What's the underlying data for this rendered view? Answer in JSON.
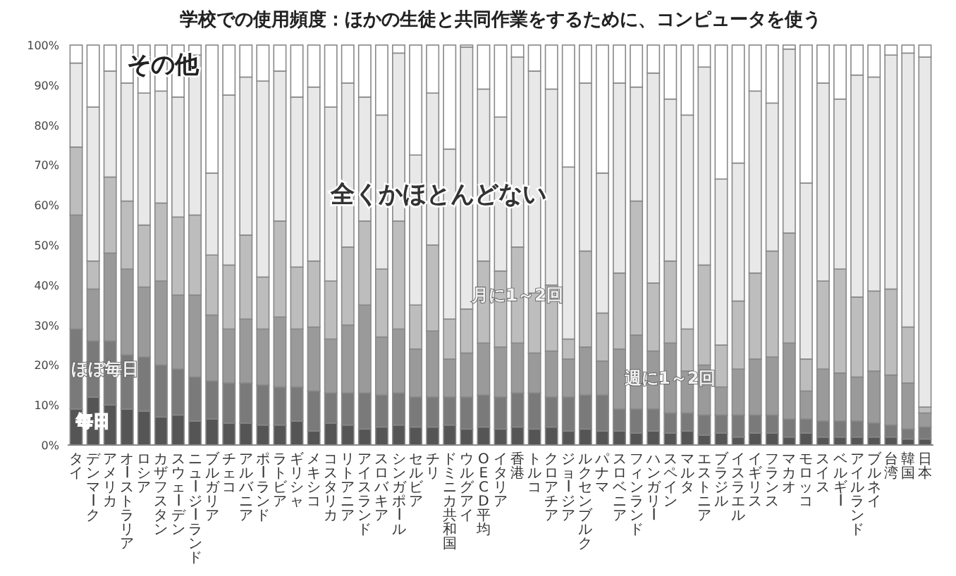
{
  "chart_data": {
    "type": "bar",
    "stacked": true,
    "title": "学校での使用頻度：ほかの生徒と共同作業をするために、コンピュータを使う",
    "categories": [
      "タイ",
      "デンマーク",
      "アメリカ",
      "オーストラリア",
      "ロシア",
      "カザフスタン",
      "スウェーデン",
      "ニュージーランド",
      "ブルガリア",
      "チェコ",
      "アルバニア",
      "ポーランド",
      "ラトビア",
      "ギリシャ",
      "メキシコ",
      "コスタリカ",
      "リトアニア",
      "アイスランド",
      "スロバキア",
      "シンガポール",
      "セルビア",
      "チリ",
      "ドミニカ共和国",
      "ウルグアイ",
      "OECD平均",
      "イタリア",
      "香港",
      "トルコ",
      "クロアチア",
      "ジョージア",
      "ルクセンブルク",
      "パナマ",
      "スロベニア",
      "フィンランド",
      "ハンガリー",
      "スペイン",
      "マルタ",
      "エストニア",
      "ブラジル",
      "イスラエル",
      "イギリス",
      "フランス",
      "マカオ",
      "モロッコ",
      "スイス",
      "ベルギー",
      "アイルランド",
      "ブルネイ",
      "台湾",
      "韓国",
      "日本"
    ],
    "series": [
      {
        "name": "毎日",
        "color": "#555555",
        "values": [
          9,
          12,
          10,
          9,
          8.5,
          7,
          7.5,
          6,
          6.5,
          5.5,
          5.5,
          5,
          5,
          6,
          3.5,
          5.5,
          5,
          4,
          4.5,
          5,
          4.5,
          4.5,
          5,
          4,
          4.5,
          4,
          4.5,
          4,
          4.5,
          3.5,
          4,
          3.5,
          3.5,
          3,
          3.5,
          3,
          3.5,
          2.5,
          3,
          2,
          3,
          3,
          2,
          3,
          2,
          2,
          2,
          2,
          2,
          1.5,
          1.5
        ]
      },
      {
        "name": "ほぼ毎日",
        "color": "#7a7a7a",
        "values": [
          20,
          14,
          16,
          13.5,
          13.5,
          13,
          11.5,
          11,
          9.5,
          10,
          10,
          10,
          9.5,
          8.5,
          10,
          7.5,
          8,
          9,
          8,
          8,
          7.5,
          7.5,
          7,
          8,
          8,
          8,
          8.5,
          9,
          7.5,
          8.5,
          8.5,
          9,
          5.5,
          6,
          5.5,
          5,
          4.5,
          5,
          4.5,
          5.5,
          4.5,
          4.5,
          4.5,
          3.5,
          4,
          4,
          4,
          3.5,
          3,
          2.5,
          3
        ]
      },
      {
        "name": "週に1～2回",
        "color": "#9a9a9a",
        "values": [
          28.5,
          13,
          22,
          21.5,
          17.5,
          21,
          18.5,
          20.5,
          16.5,
          13.5,
          16,
          14,
          17.5,
          14.5,
          16,
          13.5,
          17,
          22,
          14.5,
          16,
          12,
          16.5,
          9.5,
          11,
          13,
          12.5,
          12.5,
          10,
          11.5,
          9.5,
          12,
          8.5,
          15,
          18.5,
          14.5,
          17.5,
          10.5,
          12.5,
          7,
          11.5,
          14,
          14.5,
          19,
          7,
          13,
          12,
          11,
          13,
          12.5,
          11.5,
          3.5
        ]
      },
      {
        "name": "月に1～2回",
        "color": "#bdbdbd",
        "values": [
          17,
          7,
          19,
          17,
          15.5,
          19.5,
          19.5,
          20,
          15,
          16,
          21,
          13,
          24,
          15.5,
          16.5,
          14.5,
          19.5,
          21,
          17,
          27,
          11,
          21.5,
          10,
          11,
          20.5,
          19,
          24,
          15,
          16.5,
          5,
          24,
          12,
          19,
          33.5,
          17,
          20.5,
          10.5,
          25,
          10.5,
          17,
          21.5,
          26.5,
          27.5,
          8,
          22,
          26,
          20,
          20,
          21.5,
          14,
          1.5
        ]
      },
      {
        "name": "全くかほとんどない",
        "color": "#e8e8e8",
        "values": [
          21,
          38.5,
          26.5,
          29.5,
          33,
          28,
          30,
          40,
          20.5,
          42.5,
          39.5,
          49,
          37.5,
          42.5,
          43.5,
          43.5,
          41,
          31,
          38.5,
          42,
          37.5,
          38,
          42.5,
          65.5,
          43,
          38.5,
          47.5,
          55.5,
          49,
          43,
          42,
          35,
          47.5,
          28.5,
          52.5,
          40.5,
          53.5,
          49.5,
          41.5,
          34.5,
          45.5,
          37,
          46,
          44,
          49.5,
          42.5,
          55.5,
          53.5,
          58.5,
          68.5,
          87.5
        ]
      },
      {
        "name": "その他",
        "color": "#ffffff",
        "values": [
          4.5,
          15.5,
          6.5,
          9.5,
          12,
          11.5,
          13,
          2.5,
          32,
          12.5,
          8,
          9,
          6.5,
          13,
          10.5,
          15.5,
          9.5,
          13,
          17.5,
          2,
          27.5,
          12,
          26,
          0.5,
          11,
          18,
          3,
          6.5,
          11,
          30.5,
          9.5,
          32,
          9.5,
          10.5,
          7,
          13.5,
          17.5,
          5.5,
          33.5,
          29.5,
          11.5,
          14.5,
          1,
          34.5,
          9.5,
          13.5,
          7.5,
          8,
          2.5,
          2,
          3
        ]
      }
    ],
    "ylim": [
      0,
      100
    ],
    "yticks": [
      {
        "value": 0,
        "label": "0%"
      },
      {
        "value": 10,
        "label": "10%"
      },
      {
        "value": 20,
        "label": "20%"
      },
      {
        "value": 30,
        "label": "30%"
      },
      {
        "value": 40,
        "label": "40%"
      },
      {
        "value": 50,
        "label": "50%"
      },
      {
        "value": 60,
        "label": "60%"
      },
      {
        "value": 70,
        "label": "70%"
      },
      {
        "value": 80,
        "label": "80%"
      },
      {
        "value": 90,
        "label": "90%"
      },
      {
        "value": 100,
        "label": "100%"
      }
    ],
    "grid": false,
    "legend": false
  }
}
